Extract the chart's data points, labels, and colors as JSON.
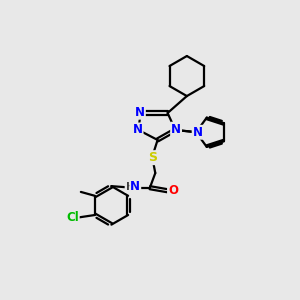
{
  "bg_color": "#e8e8e8",
  "atom_colors": {
    "N": "#0000ff",
    "O": "#ff0000",
    "S": "#cccc00",
    "Cl": "#00bb00",
    "C": "#000000",
    "H": "#606060"
  },
  "bond_color": "#000000",
  "bond_width": 1.6
}
